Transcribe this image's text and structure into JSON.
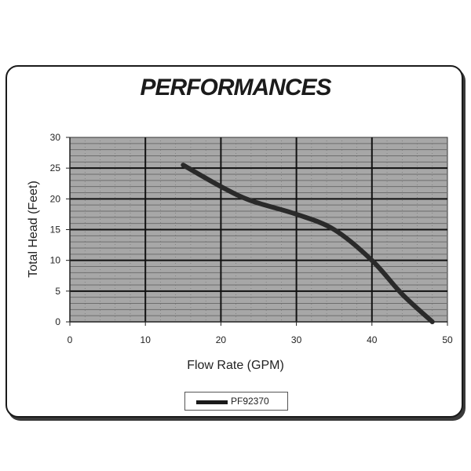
{
  "chart_data": {
    "type": "line",
    "title": "PERFORMANCES",
    "xlabel": "Flow Rate (GPM)",
    "ylabel": "Total Head (Feet)",
    "xlim": [
      0,
      50
    ],
    "ylim": [
      0,
      30
    ],
    "xticks": [
      0,
      10,
      20,
      30,
      40,
      50
    ],
    "yticks": [
      0,
      5,
      10,
      15,
      20,
      25,
      30
    ],
    "grid": true,
    "legend_position": "bottom-center",
    "colors": {
      "plot_bg": "#a7a7a7",
      "line": "#2a2a2a",
      "minor_grid": "#6e6e6e",
      "major_grid": "#111111"
    },
    "series": [
      {
        "name": "PF92370",
        "x": [
          15,
          20,
          24,
          30,
          35,
          40,
          44,
          48
        ],
        "y": [
          25.5,
          22,
          19.7,
          17.5,
          15,
          10,
          4.5,
          0
        ]
      }
    ]
  }
}
